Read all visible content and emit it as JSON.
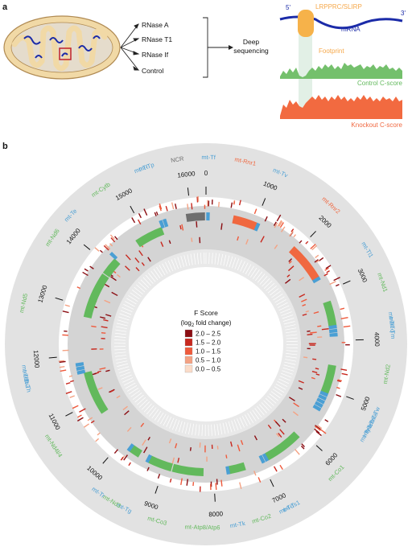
{
  "panel_a": {
    "label": "a",
    "treatments": [
      "RNase A",
      "RNase T1",
      "RNase If",
      "Control"
    ],
    "deep_seq_line1": "Deep",
    "deep_seq_line2": "sequencing",
    "five_prime": "5'",
    "three_prime": "3'",
    "protein": "LRPPRC/SLIRP",
    "mrna": "mRNA",
    "footprint": "Footprint",
    "control_score": "Control C-score",
    "knockout_score": "Knockout C-score"
  },
  "panel_b": {
    "label": "b",
    "legend_title": "F Score",
    "legend_subtitle_main": "(log",
    "legend_subtitle_sub": "2",
    "legend_subtitle_end": " fold change)",
    "legend": [
      {
        "label": "2.0 – 2.5",
        "color": "#8b0d12"
      },
      {
        "label": "1.5 – 2.0",
        "color": "#c8281e"
      },
      {
        "label": "1.0 – 1.5",
        "color": "#ef5a3c"
      },
      {
        "label": "0.5 – 1.0",
        "color": "#f4a283"
      },
      {
        "label": "0.0 – 0.5",
        "color": "#fbdcc9"
      }
    ],
    "genome_length": 16300,
    "ticks": [
      {
        "pos": 0,
        "label": "0"
      },
      {
        "pos": 1000,
        "label": "1000"
      },
      {
        "pos": 2000,
        "label": "2000"
      },
      {
        "pos": 3000,
        "label": "3000"
      },
      {
        "pos": 4000,
        "label": "4000"
      },
      {
        "pos": 5000,
        "label": "5000"
      },
      {
        "pos": 6000,
        "label": "6000"
      },
      {
        "pos": 7000,
        "label": "7000"
      },
      {
        "pos": 8000,
        "label": "8000"
      },
      {
        "pos": 9000,
        "label": "9000"
      },
      {
        "pos": 10000,
        "label": "10000"
      },
      {
        "pos": 11000,
        "label": "11000"
      },
      {
        "pos": 12000,
        "label": "12000"
      },
      {
        "pos": 13000,
        "label": "13000"
      },
      {
        "pos": 14000,
        "label": "14000"
      },
      {
        "pos": 15000,
        "label": "15000"
      },
      {
        "pos": 16000,
        "label": "16000"
      }
    ],
    "genes": [
      {
        "name": "mt-Tf",
        "pos": 35,
        "type": "trna"
      },
      {
        "name": "mt-Rnr1",
        "pos": 550,
        "type": "rrna"
      },
      {
        "name": "mt-Tv",
        "pos": 1060,
        "type": "trna"
      },
      {
        "name": "mt-Rnr2",
        "pos": 1900,
        "type": "rrna"
      },
      {
        "name": "mt-Tl1",
        "pos": 2700,
        "type": "trna"
      },
      {
        "name": "mt-Nd1",
        "pos": 3200,
        "type": "protein"
      },
      {
        "name": "mt-Ti",
        "pos": 3720,
        "type": "trna"
      },
      {
        "name": "mt-Tq",
        "pos": 3800,
        "type": "trna"
      },
      {
        "name": "mt-Tm",
        "pos": 3880,
        "type": "trna"
      },
      {
        "name": "mt-Nd2",
        "pos": 4500,
        "type": "protein"
      },
      {
        "name": "mt-Tw",
        "pos": 5100,
        "type": "trna"
      },
      {
        "name": "mt-Ta",
        "pos": 5180,
        "type": "trna"
      },
      {
        "name": "mt-Tn",
        "pos": 5260,
        "type": "trna"
      },
      {
        "name": "mt-Tc",
        "pos": 5340,
        "type": "trna"
      },
      {
        "name": "mt-Ty",
        "pos": 5420,
        "type": "trna"
      },
      {
        "name": "mt-Co1",
        "pos": 6100,
        "type": "protein"
      },
      {
        "name": "mt-Ts1",
        "pos": 6890,
        "type": "trna"
      },
      {
        "name": "mt-Td",
        "pos": 6970,
        "type": "trna"
      },
      {
        "name": "mt-Co2",
        "pos": 7350,
        "type": "protein"
      },
      {
        "name": "mt-Tk",
        "pos": 7700,
        "type": "trna"
      },
      {
        "name": "mt-Atp8/Atp6",
        "pos": 8200,
        "type": "protein"
      },
      {
        "name": "mt-Co3",
        "pos": 8850,
        "type": "protein"
      },
      {
        "name": "mt-Tg",
        "pos": 9350,
        "type": "trna"
      },
      {
        "name": "mt-Nd3",
        "pos": 9550,
        "type": "protein"
      },
      {
        "name": "mt-Tr",
        "pos": 9780,
        "type": "trna"
      },
      {
        "name": "mt-Nd4l/4",
        "pos": 10700,
        "type": "protein"
      },
      {
        "name": "mt-Th",
        "pos": 11650,
        "type": "trna"
      },
      {
        "name": "mt-Ts2",
        "pos": 11730,
        "type": "trna"
      },
      {
        "name": "mt-Tl2",
        "pos": 11810,
        "type": "trna"
      },
      {
        "name": "mt-Nd5",
        "pos": 12800,
        "type": "protein"
      },
      {
        "name": "mt-Nd6",
        "pos": 13800,
        "type": "protein"
      },
      {
        "name": "mt-Te",
        "pos": 14200,
        "type": "trna"
      },
      {
        "name": "mt-Cytb",
        "pos": 14750,
        "type": "protein"
      },
      {
        "name": "mt-Tt",
        "pos": 15380,
        "type": "trna"
      },
      {
        "name": "mt-Tp",
        "pos": 15460,
        "type": "trna"
      },
      {
        "name": "NCR",
        "pos": 15900,
        "type": "ncr"
      }
    ],
    "type_colors": {
      "trna": "#4a9fd4",
      "rrna": "#f06840",
      "protein": "#62b95c",
      "ncr": "#6e6e6e"
    }
  }
}
